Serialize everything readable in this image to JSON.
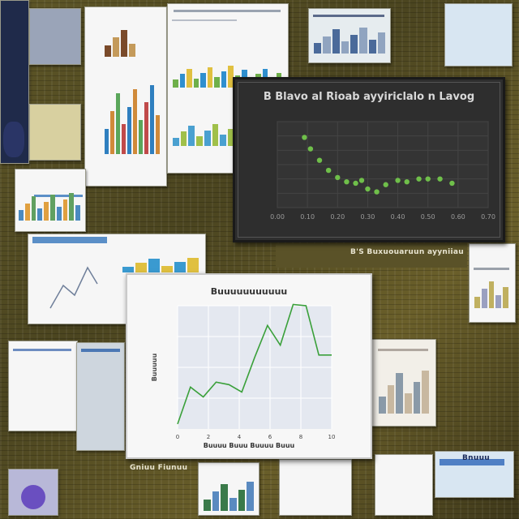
{
  "wall": {
    "caption_mid_right": "B'S Buxuouaruun ayyniiau",
    "caption_bottom_left": "Gniuu Fiunuu",
    "caption_bottom_right": "Bnuuu"
  },
  "colors": {
    "dark_board": "#2e2e2e",
    "dark_points": "#6fbf4a",
    "light_board": "#f7f7f7",
    "light_line": "#3aa03a",
    "wall": "#4a4420"
  },
  "chart_data": [
    {
      "type": "scatter",
      "title": "B Blavo al Rioab ayyiriclalo n Lavog",
      "xlabel": "",
      "ylabel": "",
      "x_ticks": [
        "0.00",
        "0.10",
        "0.20",
        "0.30",
        "0.40",
        "0.50",
        "0.60",
        "0.70"
      ],
      "y_ticks": [
        "",
        "",
        "",
        "",
        "",
        "",
        ""
      ],
      "xlim": [
        0,
        0.7
      ],
      "ylim": [
        0,
        6
      ],
      "grid": true,
      "points": [
        {
          "x": 0.09,
          "y": 4.9
        },
        {
          "x": 0.11,
          "y": 4.1
        },
        {
          "x": 0.14,
          "y": 3.3
        },
        {
          "x": 0.17,
          "y": 2.6
        },
        {
          "x": 0.2,
          "y": 2.1
        },
        {
          "x": 0.23,
          "y": 1.8
        },
        {
          "x": 0.26,
          "y": 1.7
        },
        {
          "x": 0.28,
          "y": 1.9
        },
        {
          "x": 0.3,
          "y": 1.3
        },
        {
          "x": 0.33,
          "y": 1.1
        },
        {
          "x": 0.36,
          "y": 1.6
        },
        {
          "x": 0.4,
          "y": 1.9
        },
        {
          "x": 0.43,
          "y": 1.8
        },
        {
          "x": 0.47,
          "y": 2.0
        },
        {
          "x": 0.5,
          "y": 2.0
        },
        {
          "x": 0.54,
          "y": 2.0
        },
        {
          "x": 0.58,
          "y": 1.7
        }
      ]
    },
    {
      "type": "line",
      "title": "Buuuuuuuuuuu",
      "xlabel": "Buuuu Buuu Buuuu Buuu",
      "ylabel": "Buuuuu",
      "x": [
        0,
        1,
        2,
        3,
        4,
        5,
        6,
        7,
        8,
        9,
        10,
        11,
        12
      ],
      "x_ticks": [
        "0",
        "2",
        "4",
        "6",
        "8",
        "10"
      ],
      "y_ticks": [
        "",
        "",
        "",
        ""
      ],
      "xlim": [
        0,
        12
      ],
      "ylim": [
        0,
        10
      ],
      "grid": true,
      "series": [
        {
          "values": [
            0.4,
            3.4,
            2.6,
            3.8,
            3.6,
            3.0,
            5.8,
            8.4,
            6.8,
            10.1,
            10.0,
            6.0,
            6.0
          ]
        }
      ]
    }
  ]
}
